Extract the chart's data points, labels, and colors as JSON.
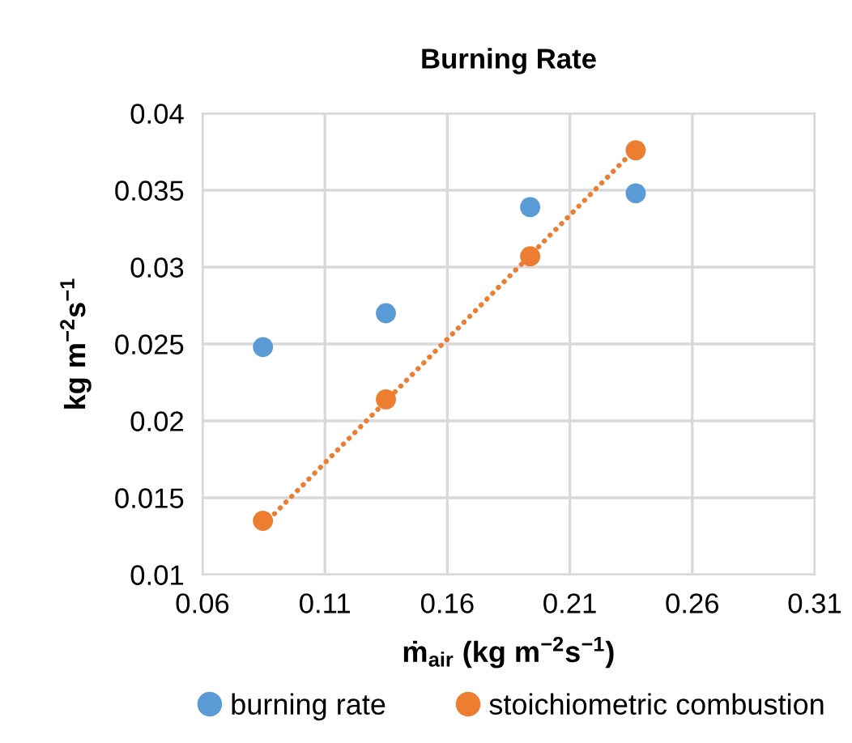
{
  "chart_data": {
    "type": "scatter",
    "title": "Burning Rate",
    "xlabel": "ṁ$_{air}$ (kg m$^{−2}$s$^{−1}$)",
    "ylabel": "kg m$^{−2}$s$^{−1}$",
    "series": [
      {
        "name": "burning rate",
        "color": "#5b9bd5",
        "x": [
          0.0847,
          0.1349,
          0.1938,
          0.2369
        ],
        "values": [
          0.0248,
          0.027,
          0.0339,
          0.0348
        ]
      },
      {
        "name": "stoichiometric combustion",
        "color": "#ed7d31",
        "x": [
          0.0847,
          0.1349,
          0.1938,
          0.2369
        ],
        "values": [
          0.0135,
          0.0214,
          0.0307,
          0.0376
        ]
      },
      {
        "type": "line",
        "color": "#ed7d31",
        "line_style": "dotted",
        "marker": "none",
        "x": [
          0.0847,
          0.2369
        ],
        "values": [
          0.0132,
          0.0377
        ]
      }
    ],
    "xlim": [
      0.06,
      0.31
    ],
    "xticks": [
      0.06,
      0.11,
      0.16,
      0.21,
      0.26,
      0.31
    ],
    "ylim": [
      0.01,
      0.04
    ],
    "yticks": [
      0.01,
      0.015,
      0.02,
      0.025,
      0.03,
      0.035,
      0.04
    ],
    "grid": true,
    "legend": "bottom",
    "marker": "circle"
  }
}
